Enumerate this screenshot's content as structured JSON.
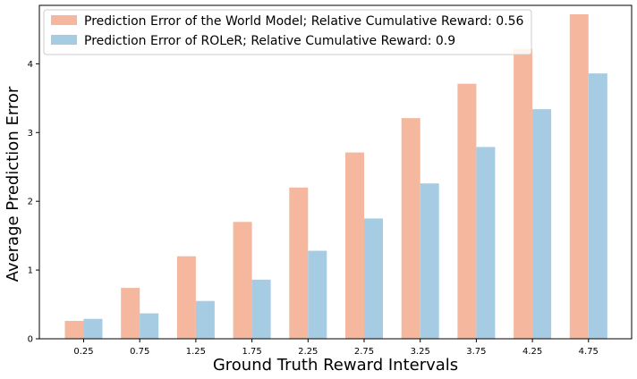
{
  "chart_data": {
    "type": "bar",
    "title": "",
    "xlabel": "Ground Truth Reward Intervals",
    "ylabel": "Average Prediction Error",
    "categories": [
      "0.25",
      "0.75",
      "1.25",
      "1.75",
      "2.25",
      "2.75",
      "3.25",
      "3.75",
      "4.25",
      "4.75"
    ],
    "series": [
      {
        "name": "Prediction Error of the World Model; Relative Cumulative Reward: 0.56",
        "color": "#f5b89e",
        "values": [
          0.26,
          0.74,
          1.2,
          1.7,
          2.2,
          2.71,
          3.21,
          3.71,
          4.22,
          4.72
        ]
      },
      {
        "name": "Prediction Error of ROLeR; Relative Cumulative Reward: 0.9",
        "color": "#a6cce3",
        "values": [
          0.29,
          0.37,
          0.55,
          0.86,
          1.28,
          1.75,
          2.26,
          2.79,
          3.34,
          3.86
        ]
      }
    ],
    "ylim": [
      0,
      4.85
    ],
    "yticks": [
      "0",
      "1",
      "2",
      "3",
      "4"
    ],
    "grid": false,
    "legend_position": "top-left"
  }
}
